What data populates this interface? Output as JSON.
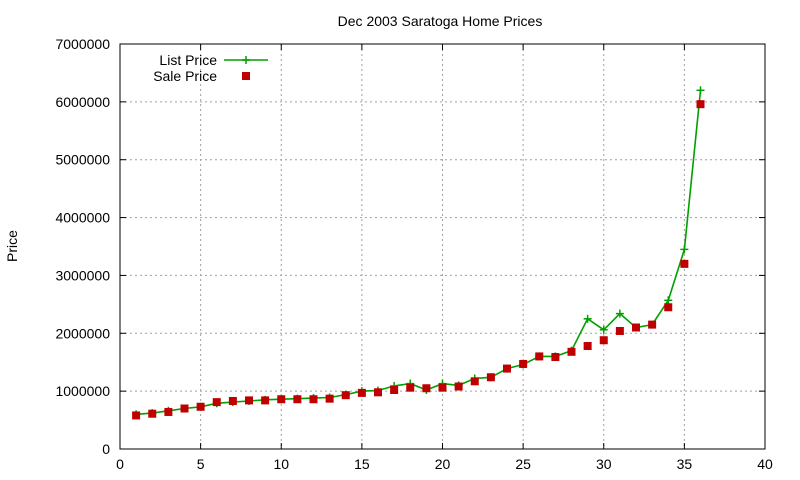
{
  "chart_data": {
    "type": "line",
    "title": "Dec 2003 Saratoga Home Prices",
    "xlabel": "",
    "ylabel": "Price",
    "xlim": [
      0,
      40
    ],
    "ylim": [
      0,
      7000000
    ],
    "x_ticks": [
      0,
      5,
      10,
      15,
      20,
      25,
      30,
      35,
      40
    ],
    "y_ticks": [
      0,
      1000000,
      2000000,
      3000000,
      4000000,
      5000000,
      6000000,
      7000000
    ],
    "grid": true,
    "legend_position": "top-left",
    "x": [
      1,
      2,
      3,
      4,
      5,
      6,
      7,
      8,
      9,
      10,
      11,
      12,
      13,
      14,
      15,
      16,
      17,
      18,
      19,
      20,
      21,
      22,
      23,
      24,
      25,
      26,
      27,
      28,
      29,
      30,
      31,
      32,
      33,
      34,
      35,
      36
    ],
    "series": [
      {
        "name": "List Price",
        "style": "line-plus",
        "color": "#00a000",
        "values": [
          600000,
          620000,
          660000,
          700000,
          730000,
          790000,
          810000,
          830000,
          850000,
          860000,
          870000,
          880000,
          890000,
          940000,
          1000000,
          1010000,
          1090000,
          1130000,
          1020000,
          1130000,
          1100000,
          1220000,
          1240000,
          1390000,
          1460000,
          1600000,
          1600000,
          1700000,
          2250000,
          2060000,
          2340000,
          2100000,
          2150000,
          2570000,
          3450000,
          6200000
        ]
      },
      {
        "name": "Sale Price",
        "style": "square-points",
        "color": "#c00000",
        "values": [
          580000,
          610000,
          640000,
          700000,
          730000,
          810000,
          830000,
          840000,
          840000,
          860000,
          860000,
          860000,
          870000,
          930000,
          970000,
          980000,
          1020000,
          1060000,
          1050000,
          1060000,
          1080000,
          1170000,
          1240000,
          1390000,
          1470000,
          1600000,
          1590000,
          1680000,
          1780000,
          1880000,
          2040000,
          2100000,
          2150000,
          2450000,
          3200000,
          5960000
        ]
      }
    ]
  }
}
